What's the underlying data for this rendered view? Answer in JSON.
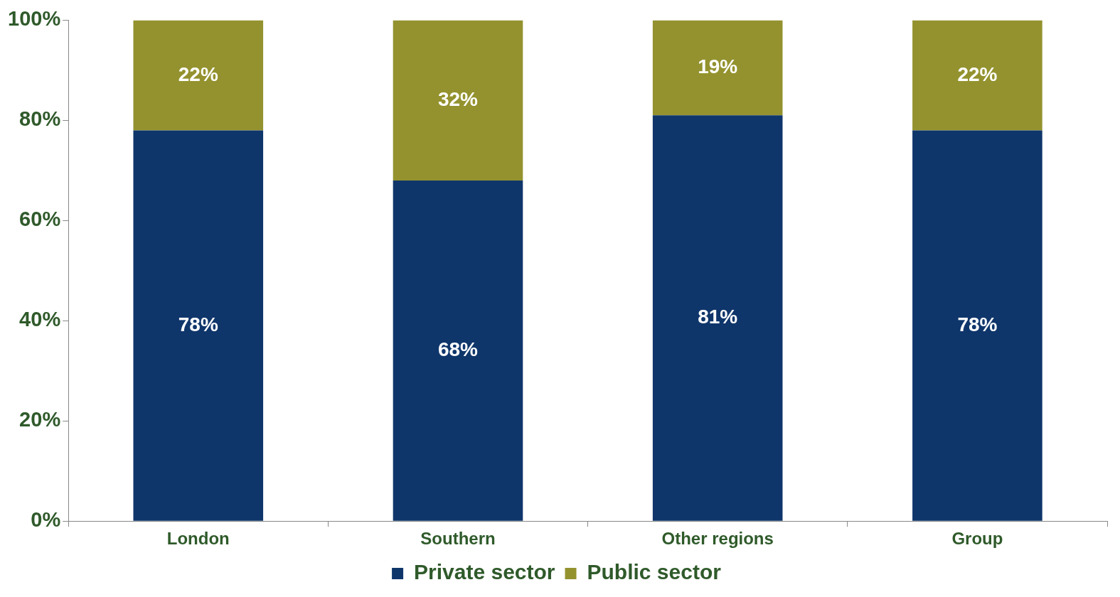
{
  "chart_data": {
    "type": "bar",
    "stacked": true,
    "categories": [
      "London",
      "Southern",
      "Other regions",
      "Group"
    ],
    "series": [
      {
        "name": "Private sector",
        "color": "#0f366b",
        "values": [
          78,
          68,
          81,
          78
        ],
        "value_labels": [
          "78%",
          "68%",
          "81%",
          "78%"
        ]
      },
      {
        "name": "Public sector",
        "color": "#94922e",
        "values": [
          22,
          32,
          19,
          22
        ],
        "value_labels": [
          "22%",
          "32%",
          "19%",
          "22%"
        ]
      }
    ],
    "ylim": [
      0,
      100
    ],
    "yticks": [
      {
        "value": 0,
        "label": "0%"
      },
      {
        "value": 20,
        "label": "20%"
      },
      {
        "value": 40,
        "label": "40%"
      },
      {
        "value": 60,
        "label": "60%"
      },
      {
        "value": 80,
        "label": "80%"
      },
      {
        "value": 100,
        "label": "100%"
      }
    ],
    "grid": false,
    "legend": "bottom"
  }
}
